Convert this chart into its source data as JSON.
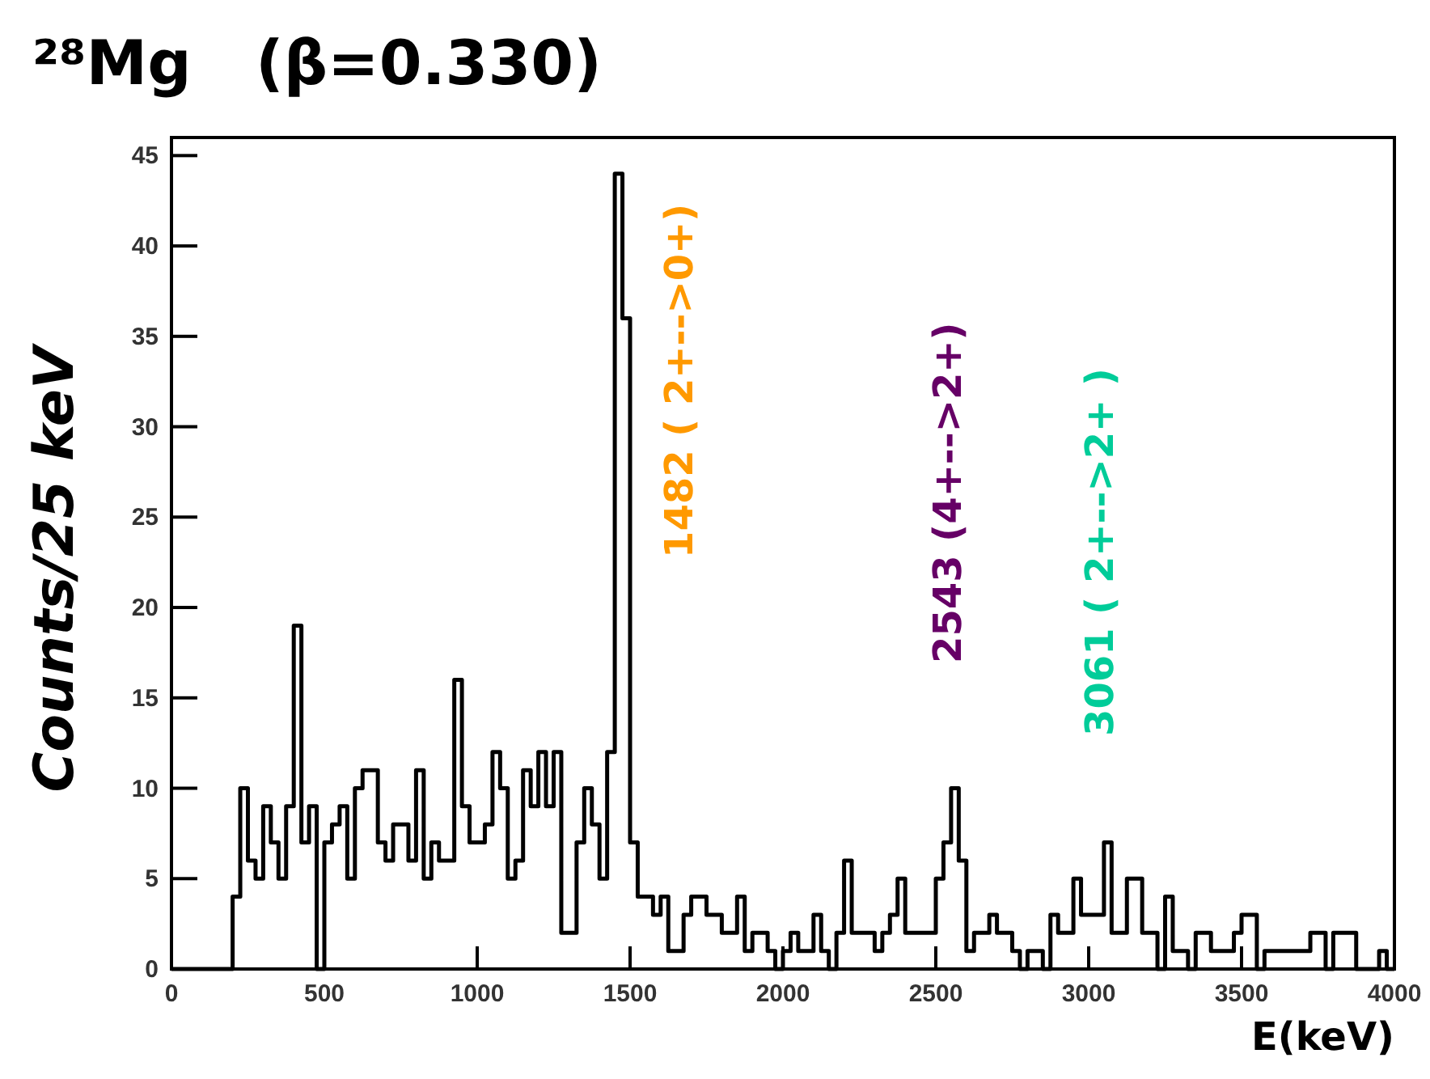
{
  "chart_data": {
    "type": "histogram",
    "title": "²⁸Mg   (β=0.330)",
    "xlabel": "E(keV)",
    "ylabel": "Counts/25 keV",
    "bins": [
      0,
      25,
      50,
      75,
      100,
      125,
      150,
      175,
      200,
      225,
      250,
      275,
      300,
      325,
      350,
      375,
      400,
      425,
      450,
      475,
      500,
      525,
      550,
      575,
      600,
      625,
      650,
      675,
      700,
      725,
      750,
      775,
      800,
      825,
      850,
      875,
      900,
      925,
      950,
      975,
      1000,
      1025,
      1050,
      1075,
      1100,
      1125,
      1150,
      1175,
      1200,
      1225,
      1250,
      1275,
      1300,
      1325,
      1350,
      1375,
      1400,
      1425,
      1450,
      1475,
      1500,
      1525,
      1550,
      1575,
      1600,
      1625,
      1650,
      1675,
      1700,
      1725,
      1750,
      1775,
      1800,
      1825,
      1850,
      1875,
      1900,
      1925,
      1950,
      1975,
      2000,
      2025,
      2050,
      2075,
      2100,
      2125,
      2150,
      2175,
      2200,
      2225,
      2250,
      2275,
      2300,
      2325,
      2350,
      2375,
      2400,
      2425,
      2450,
      2475,
      2500,
      2525,
      2550,
      2575,
      2600,
      2625,
      2650,
      2675,
      2700,
      2725,
      2750,
      2775,
      2800,
      2825,
      2850,
      2875,
      2900,
      2925,
      2950,
      2975,
      3000,
      3025,
      3050,
      3075,
      3100,
      3125,
      3150,
      3175,
      3200,
      3225,
      3250,
      3275,
      3300,
      3325,
      3350,
      3375,
      3400,
      3425,
      3450,
      3475,
      3500,
      3525,
      3550,
      3575,
      3600,
      3625,
      3650,
      3675,
      3700,
      3725,
      3750,
      3775,
      3800,
      3825,
      3850,
      3875,
      3900,
      3925,
      3950,
      3975,
      4000
    ],
    "values": [
      0,
      0,
      0,
      0,
      0,
      0,
      0,
      0,
      4,
      10,
      6,
      5,
      9,
      7,
      5,
      9,
      19,
      7,
      9,
      0,
      7,
      8,
      9,
      5,
      10,
      11,
      11,
      7,
      6,
      8,
      8,
      6,
      11,
      5,
      7,
      6,
      6,
      16,
      9,
      7,
      7,
      8,
      12,
      10,
      5,
      6,
      11,
      9,
      12,
      9,
      12,
      2,
      2,
      7,
      10,
      8,
      5,
      12,
      44,
      36,
      7,
      4,
      4,
      3,
      4,
      1,
      1,
      3,
      4,
      4,
      3,
      3,
      2,
      2,
      4,
      1,
      2,
      2,
      1,
      0,
      1,
      2,
      1,
      1,
      3,
      1,
      0,
      2,
      6,
      2,
      2,
      2,
      1,
      2,
      3,
      5,
      2,
      2,
      2,
      2,
      5,
      7,
      10,
      6,
      1,
      2,
      2,
      3,
      2,
      2,
      1,
      0,
      1,
      1,
      0,
      3,
      2,
      2,
      5,
      3,
      3,
      3,
      7,
      2,
      2,
      5,
      5,
      2,
      2,
      0,
      4,
      1,
      1,
      0,
      2,
      2,
      1,
      1,
      1,
      2,
      3,
      3,
      0,
      1,
      1,
      1,
      1,
      1,
      1,
      2,
      2,
      0,
      2,
      2,
      2,
      0,
      0,
      0,
      1,
      0
    ],
    "color": "#000000",
    "xlim": [
      0,
      4000
    ],
    "xticks": [
      0,
      500,
      1000,
      1500,
      2000,
      2500,
      3000,
      3500,
      4000
    ],
    "ylim": [
      0,
      46
    ],
    "yticks": [
      0,
      5,
      10,
      15,
      20,
      25,
      30,
      35,
      40,
      45
    ],
    "annotations": [
      "1482 ( 2+-->0+)",
      "2543 (4+-->2+)",
      "3061 ( 2+-->2+ )"
    ],
    "grid": false
  }
}
